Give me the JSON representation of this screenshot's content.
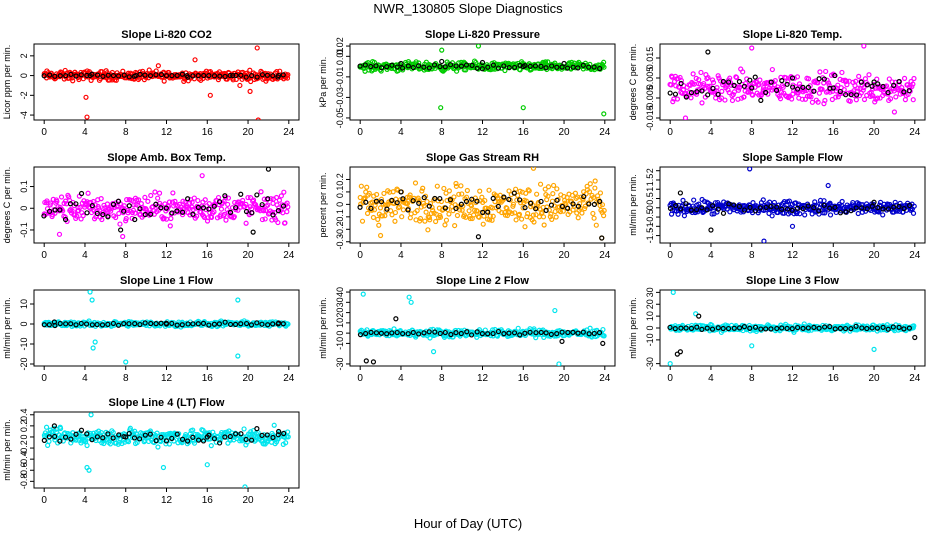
{
  "page": {
    "title": "NWR_130805  Slope Diagnostics",
    "xlabel": "Hour of Day (UTC)"
  },
  "chart_data": [
    {
      "type": "scatter",
      "title": "Slope Li-820 CO2",
      "ylabel": "Licor ppm per min.",
      "xticks": [
        0,
        4,
        8,
        12,
        16,
        20,
        24
      ],
      "xlim": [
        -1,
        25
      ],
      "ylim": [
        -4.5,
        3.2
      ],
      "yticks": [
        -4,
        -2,
        0,
        2
      ],
      "grid": false,
      "series": [
        {
          "color": "#ff0000",
          "spread": 0.45,
          "points": [
            [
              4.1,
              -2.2
            ],
            [
              4.2,
              -4.2
            ],
            [
              11.2,
              1.0
            ],
            [
              14.8,
              1.6
            ],
            [
              16.3,
              -2.0
            ],
            [
              19.2,
              -1.0
            ],
            [
              20.2,
              -1.6
            ],
            [
              20.9,
              2.8
            ],
            [
              21.0,
              -4.5
            ]
          ]
        },
        {
          "color": "#000000",
          "spread": 0.12,
          "points": [
            [
              4.5,
              0.0
            ],
            [
              9.0,
              0.0
            ],
            [
              14.0,
              0.0
            ],
            [
              18.5,
              0.0
            ],
            [
              23.0,
              0.0
            ]
          ]
        }
      ]
    },
    {
      "type": "scatter",
      "title": "Slope Li-820 Pressure",
      "ylabel": "kPa per min.",
      "xticks": [
        0,
        4,
        8,
        12,
        16,
        20,
        24
      ],
      "xlim": [
        -1,
        25
      ],
      "ylim": [
        -0.052,
        0.022
      ],
      "yticks": [
        -0.05,
        -0.03,
        -0.01,
        0.01,
        0.02
      ],
      "grid": false,
      "series": [
        {
          "color": "#00cc00",
          "spread": 0.004,
          "points": [
            [
              7.9,
              -0.04
            ],
            [
              11.6,
              0.02
            ],
            [
              16.0,
              -0.04
            ],
            [
              23.9,
              -0.046
            ],
            [
              8.0,
              0.016
            ]
          ]
        },
        {
          "color": "#000000",
          "spread": 0.002,
          "points": [
            [
              4.0,
              0.003
            ],
            [
              8.0,
              0.005
            ],
            [
              12.0,
              0.004
            ],
            [
              16.0,
              0.0
            ],
            [
              20.0,
              0.003
            ]
          ]
        }
      ]
    },
    {
      "type": "scatter",
      "title": "Slope Li-820 Temp.",
      "ylabel": "degrees C per min.",
      "xticks": [
        0,
        4,
        8,
        12,
        16,
        20,
        24
      ],
      "xlim": [
        -1,
        25
      ],
      "ylim": [
        -0.016,
        0.022
      ],
      "yticks": [
        -0.015,
        -0.005,
        0.005,
        0.015
      ],
      "grid": false,
      "series": [
        {
          "color": "#ff00ff",
          "spread": 0.007,
          "points": [
            [
              1.5,
              -0.015
            ],
            [
              8.0,
              0.02
            ],
            [
              19.0,
              0.021
            ],
            [
              22.0,
              -0.012
            ]
          ]
        },
        {
          "color": "#000000",
          "spread": 0.005,
          "points": [
            [
              3.7,
              0.018
            ],
            [
              8.0,
              0.0
            ],
            [
              12.0,
              0.005
            ],
            [
              16.0,
              0.0
            ],
            [
              20.0,
              0.003
            ]
          ]
        }
      ]
    },
    {
      "type": "scatter",
      "title": "Slope Amb. Box Temp.",
      "ylabel": "degrees C per min.",
      "xticks": [
        0,
        4,
        8,
        12,
        16,
        20,
        24
      ],
      "xlim": [
        -1,
        25
      ],
      "ylim": [
        -0.16,
        0.19
      ],
      "yticks": [
        -0.1,
        0.0,
        0.1
      ],
      "grid": false,
      "series": [
        {
          "color": "#ff00ff",
          "spread": 0.06,
          "points": [
            [
              1.5,
              -0.12
            ],
            [
              7.7,
              -0.13
            ],
            [
              15.5,
              0.15
            ]
          ]
        },
        {
          "color": "#000000",
          "spread": 0.05,
          "points": [
            [
              22.0,
              0.18
            ],
            [
              7.5,
              -0.1
            ],
            [
              20.5,
              -0.11
            ]
          ]
        }
      ]
    },
    {
      "type": "scatter",
      "title": "Slope Gas Stream RH",
      "ylabel": "percent per min.",
      "xticks": [
        0,
        4,
        8,
        12,
        16,
        20,
        24
      ],
      "xlim": [
        -1,
        25
      ],
      "ylim": [
        -0.31,
        0.3
      ],
      "yticks": [
        -0.3,
        -0.2,
        -0.1,
        0.0,
        0.1,
        0.2
      ],
      "grid": false,
      "series": [
        {
          "color": "#ffa500",
          "spread": 0.15,
          "points": [
            [
              2.0,
              -0.25
            ],
            [
              17.0,
              0.29
            ],
            [
              23.7,
              -0.27
            ]
          ]
        },
        {
          "color": "#000000",
          "spread": 0.06,
          "points": [
            [
              11.6,
              -0.26
            ],
            [
              23.7,
              -0.27
            ],
            [
              4.0,
              0.1
            ]
          ]
        }
      ]
    },
    {
      "type": "scatter",
      "title": "Slope Sample Flow",
      "ylabel": "ml/min per min.",
      "xticks": [
        0,
        4,
        8,
        12,
        16,
        20,
        24
      ],
      "xlim": [
        -1,
        25
      ],
      "ylim": [
        -1.9,
        2.2
      ],
      "yticks": [
        -1.5,
        -1.0,
        -0.5,
        0.0,
        0.5,
        1.0,
        1.5,
        2.0
      ],
      "grid": false,
      "series": [
        {
          "color": "#0000cc",
          "spread": 0.35,
          "points": [
            [
              7.8,
              2.1
            ],
            [
              9.2,
              -1.8
            ],
            [
              15.5,
              1.2
            ],
            [
              12.0,
              -1.0
            ]
          ]
        },
        {
          "color": "#000000",
          "spread": 0.2,
          "points": [
            [
              4.0,
              -1.2
            ],
            [
              1.0,
              0.8
            ],
            [
              20.0,
              0.3
            ]
          ]
        }
      ]
    },
    {
      "type": "scatter",
      "title": "Slope Line 1 Flow",
      "ylabel": "ml/min per min.",
      "xticks": [
        0,
        4,
        8,
        12,
        16,
        20,
        24
      ],
      "xlim": [
        -1,
        25
      ],
      "ylim": [
        -21,
        17
      ],
      "yticks": [
        -20,
        -10,
        0,
        10
      ],
      "grid": false,
      "series": [
        {
          "color": "#00e5ee",
          "spread": 1.2,
          "points": [
            [
              4.5,
              16.0
            ],
            [
              4.7,
              12.0
            ],
            [
              5.0,
              -9.0
            ],
            [
              4.8,
              -12.0
            ],
            [
              8.0,
              -19.0
            ],
            [
              19.0,
              12.0
            ],
            [
              19.0,
              -16.0
            ]
          ]
        },
        {
          "color": "#000000",
          "spread": 0.6,
          "points": [
            [
              1.0,
              1.0
            ],
            [
              12.0,
              0.0
            ],
            [
              23.0,
              0.5
            ]
          ]
        }
      ]
    },
    {
      "type": "scatter",
      "title": "Slope Line 2 Flow",
      "ylabel": "ml/min per min.",
      "xticks": [
        0,
        4,
        8,
        12,
        16,
        20,
        24
      ],
      "xlim": [
        -1,
        25
      ],
      "ylim": [
        -32,
        42
      ],
      "yticks": [
        -30,
        -10,
        0,
        10,
        20,
        30,
        40
      ],
      "grid": false,
      "series": [
        {
          "color": "#00e5ee",
          "spread": 3.5,
          "points": [
            [
              0.3,
              38.0
            ],
            [
              4.8,
              35.0
            ],
            [
              5.0,
              30.0
            ],
            [
              19.1,
              22.0
            ],
            [
              19.5,
              -30.0
            ],
            [
              7.2,
              -18.0
            ]
          ]
        },
        {
          "color": "#000000",
          "spread": 1.2,
          "points": [
            [
              0.6,
              -27.0
            ],
            [
              1.3,
              -28.0
            ],
            [
              3.5,
              14.0
            ],
            [
              19.8,
              -8.0
            ],
            [
              23.8,
              -10.0
            ]
          ]
        }
      ]
    },
    {
      "type": "scatter",
      "title": "Slope Line 3 Flow",
      "ylabel": "ml/min per min.",
      "xticks": [
        0,
        4,
        8,
        12,
        16,
        20,
        24
      ],
      "xlim": [
        -1,
        25
      ],
      "ylim": [
        -32,
        32
      ],
      "yticks": [
        -30,
        -10,
        0,
        10,
        20,
        30
      ],
      "grid": false,
      "series": [
        {
          "color": "#00e5ee",
          "spread": 2.5,
          "points": [
            [
              0.3,
              30.0
            ],
            [
              0.0,
              -30.0
            ],
            [
              2.5,
              12.0
            ],
            [
              8.0,
              -15.0
            ],
            [
              20.0,
              -18.0
            ]
          ]
        },
        {
          "color": "#000000",
          "spread": 1.0,
          "points": [
            [
              0.7,
              -22.0
            ],
            [
              1.0,
              -20.0
            ],
            [
              2.8,
              10.0
            ],
            [
              24.0,
              -8.0
            ]
          ]
        }
      ]
    },
    {
      "type": "scatter",
      "title": "Slope Line 4 (LT) Flow",
      "ylabel": "ml/min per min.",
      "xticks": [
        0,
        4,
        8,
        12,
        16,
        20,
        24
      ],
      "xlim": [
        -1,
        25
      ],
      "ylim": [
        -0.92,
        0.45
      ],
      "yticks": [
        -0.8,
        -0.6,
        -0.4,
        -0.2,
        0.0,
        0.2,
        0.4
      ],
      "grid": false,
      "series": [
        {
          "color": "#00e5ee",
          "spread": 0.14,
          "points": [
            [
              4.6,
              0.4
            ],
            [
              4.4,
              -0.6
            ],
            [
              4.2,
              -0.55
            ],
            [
              11.7,
              -0.55
            ],
            [
              19.7,
              -0.9
            ],
            [
              16.0,
              -0.5
            ]
          ]
        },
        {
          "color": "#000000",
          "spread": 0.09,
          "points": [
            [
              1.0,
              0.2
            ],
            [
              8.0,
              0.0
            ],
            [
              16.0,
              0.0
            ],
            [
              23.0,
              0.1
            ]
          ]
        }
      ]
    }
  ]
}
